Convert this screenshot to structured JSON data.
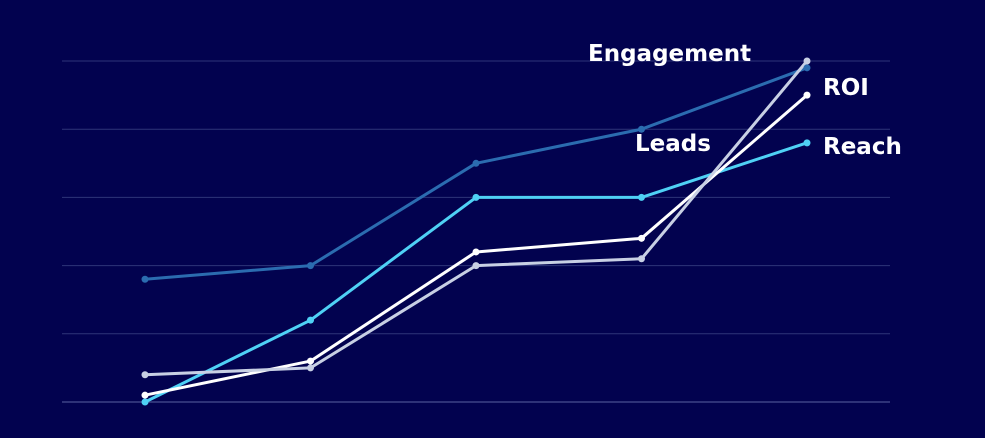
{
  "colors": {
    "background": "#02024f",
    "gridline": "#2e3478"
  },
  "chart_data": {
    "type": "line",
    "x": [
      1,
      2,
      3,
      4,
      5
    ],
    "ylim": [
      0,
      100
    ],
    "yticks": [
      0,
      20,
      40,
      60,
      80,
      100
    ],
    "grid": true,
    "legend": "direct labels at line ends",
    "series": [
      {
        "id": "leads",
        "name": "Leads",
        "color": "#2b6cb0",
        "values": [
          36,
          40,
          70,
          80,
          98
        ]
      },
      {
        "id": "reach",
        "name": "Reach",
        "color": "#4fd1f5",
        "values": [
          0,
          24,
          60,
          60,
          76
        ]
      },
      {
        "id": "roi",
        "name": "ROI",
        "color": "#ffffff",
        "values": [
          2,
          12,
          44,
          48,
          90
        ]
      },
      {
        "id": "engagement",
        "name": "Engagement",
        "color": "#c8d0e4",
        "values": [
          8,
          10,
          40,
          42,
          100
        ]
      }
    ]
  }
}
